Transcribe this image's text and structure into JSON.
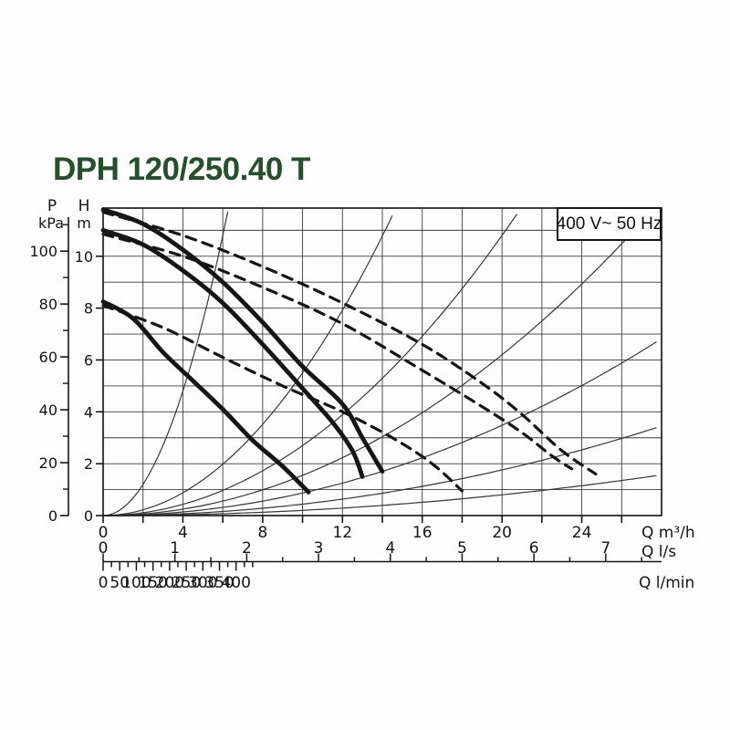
{
  "title": "DPH 120/250.40 T",
  "voltage_label": "400 V~ 50 Hz",
  "colors": {
    "title_green": "#24502a",
    "ink": "#161616",
    "grid": "#3d3d3d",
    "thin_curve": "#383838",
    "background": "#fdfdfd"
  },
  "chart_data": {
    "type": "line",
    "title": "DPH 120/250.40 T",
    "annotation": "400 V~ 50 Hz",
    "grid": true,
    "axes": {
      "pressure": {
        "label_lines": [
          "P",
          "kPa"
        ],
        "major_ticks": [
          0,
          20,
          40,
          60,
          80,
          100
        ],
        "minor_ticks": [
          10,
          30,
          50,
          70,
          90,
          110
        ],
        "range": [
          0,
          110
        ]
      },
      "head": {
        "label_lines": [
          "H",
          "m"
        ],
        "major_ticks": [
          0,
          2,
          4,
          6,
          8,
          10
        ],
        "grid_step": 1,
        "range": [
          0,
          11.86
        ]
      },
      "flow_m3h": {
        "unit_label": "Q m³/h",
        "labeled_ticks": [
          0,
          4,
          8,
          12,
          16,
          20,
          24
        ],
        "tick_step": 2,
        "range": [
          0,
          28
        ]
      },
      "flow_ls": {
        "unit_label": "Q l/s",
        "labeled_ticks": [
          0,
          1,
          2,
          3,
          4,
          5,
          6,
          7
        ],
        "minor_step": 0.5,
        "range": [
          0,
          7.5
        ]
      },
      "flow_lmin": {
        "unit_label": "Q l/min",
        "labeled_ticks": [
          0,
          50,
          100,
          150,
          200,
          250,
          300,
          350,
          400
        ],
        "minor_step": 25,
        "range": [
          0,
          450
        ]
      }
    },
    "series": [
      {
        "name": "speed-3-single",
        "style": "solid",
        "points": [
          [
            0,
            11.8
          ],
          [
            2,
            11.25
          ],
          [
            4,
            10.25
          ],
          [
            6,
            9.0
          ],
          [
            8,
            7.45
          ],
          [
            10,
            5.75
          ],
          [
            12,
            4.3
          ],
          [
            13,
            3.0
          ],
          [
            14,
            1.7
          ]
        ]
      },
      {
        "name": "speed-2-single",
        "style": "solid",
        "points": [
          [
            0,
            11.0
          ],
          [
            2,
            10.45
          ],
          [
            4,
            9.45
          ],
          [
            6,
            8.2
          ],
          [
            8,
            6.6
          ],
          [
            10,
            4.9
          ],
          [
            11.5,
            3.6
          ],
          [
            12.5,
            2.5
          ],
          [
            13,
            1.5
          ]
        ]
      },
      {
        "name": "speed-1-single",
        "style": "solid",
        "points": [
          [
            0,
            8.25
          ],
          [
            1.5,
            7.6
          ],
          [
            3,
            6.3
          ],
          [
            4.5,
            5.2
          ],
          [
            6,
            4.1
          ],
          [
            7.5,
            2.9
          ],
          [
            9,
            1.9
          ],
          [
            10.3,
            0.9
          ]
        ]
      },
      {
        "name": "speed-3-parallel",
        "style": "dashed",
        "points": [
          [
            0,
            11.7
          ],
          [
            4,
            10.8
          ],
          [
            8,
            9.6
          ],
          [
            12,
            8.2
          ],
          [
            16,
            6.6
          ],
          [
            19,
            5.1
          ],
          [
            21,
            3.9
          ],
          [
            23,
            2.5
          ],
          [
            24.7,
            1.6
          ]
        ]
      },
      {
        "name": "speed-2-parallel",
        "style": "dashed",
        "points": [
          [
            0,
            10.85
          ],
          [
            4,
            10.0
          ],
          [
            8,
            8.8
          ],
          [
            12,
            7.4
          ],
          [
            16,
            5.6
          ],
          [
            19,
            4.2
          ],
          [
            21,
            3.2
          ],
          [
            22.5,
            2.3
          ],
          [
            23.5,
            1.8
          ]
        ]
      },
      {
        "name": "speed-1-parallel",
        "style": "dashed",
        "points": [
          [
            0,
            8.1
          ],
          [
            3,
            7.25
          ],
          [
            6,
            6.1
          ],
          [
            9,
            5.0
          ],
          [
            12,
            4.0
          ],
          [
            14.5,
            3.0
          ],
          [
            16.5,
            2.0
          ],
          [
            18,
            0.95
          ]
        ]
      }
    ],
    "system_curves": {
      "equation": "H = k·Q²",
      "k_values": [
        0.3,
        0.055,
        0.027,
        0.0155,
        0.0087,
        0.0044,
        0.002
      ]
    }
  }
}
